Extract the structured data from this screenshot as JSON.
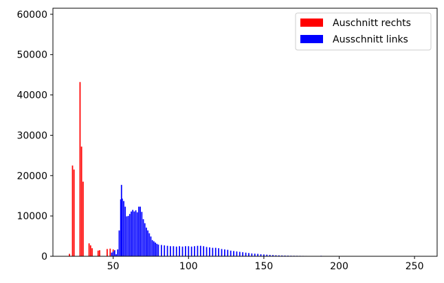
{
  "chart_data": {
    "type": "bar",
    "title": "",
    "xlabel": "",
    "ylabel": "",
    "xlim": [
      10,
      265
    ],
    "ylim": [
      0,
      61500
    ],
    "xticks": [
      50,
      100,
      150,
      200,
      250
    ],
    "yticks": [
      0,
      10000,
      20000,
      30000,
      40000,
      50000,
      60000
    ],
    "grid": false,
    "legend_position": "top-right",
    "series": [
      {
        "name": "Auschnitt rechts",
        "color": "#ff0000",
        "points": [
          [
            21,
            600
          ],
          [
            23,
            22500
          ],
          [
            24,
            21500
          ],
          [
            28,
            43200
          ],
          [
            29,
            27200
          ],
          [
            30,
            18500
          ],
          [
            34,
            3200
          ],
          [
            35,
            2700
          ],
          [
            36,
            2000
          ],
          [
            40,
            1400
          ],
          [
            41,
            1500
          ],
          [
            46,
            1800
          ],
          [
            48,
            1900
          ],
          [
            50,
            1700
          ]
        ]
      },
      {
        "name": "Ausschnitt links",
        "color": "#0000ff",
        "points": [
          [
            49,
            900
          ],
          [
            50,
            1200
          ],
          [
            51,
            1500
          ],
          [
            52,
            500
          ],
          [
            53,
            1700
          ],
          [
            54,
            6400
          ],
          [
            55,
            14100
          ],
          [
            55.5,
            17700
          ],
          [
            56,
            14300
          ],
          [
            57,
            13700
          ],
          [
            58,
            12300
          ],
          [
            59,
            9900
          ],
          [
            60,
            10000
          ],
          [
            61,
            10500
          ],
          [
            62,
            11100
          ],
          [
            63,
            11500
          ],
          [
            64,
            11100
          ],
          [
            65,
            11400
          ],
          [
            66,
            10900
          ],
          [
            67,
            12300
          ],
          [
            68,
            12300
          ],
          [
            69,
            11000
          ],
          [
            70,
            9200
          ],
          [
            71,
            8200
          ],
          [
            72,
            7100
          ],
          [
            73,
            6400
          ],
          [
            74,
            5700
          ],
          [
            75,
            4900
          ],
          [
            76,
            4000
          ],
          [
            77,
            3700
          ],
          [
            78,
            3400
          ],
          [
            79,
            3100
          ],
          [
            80,
            2900
          ],
          [
            82,
            2800
          ],
          [
            84,
            2700
          ],
          [
            86,
            2600
          ],
          [
            88,
            2500
          ],
          [
            90,
            2500
          ],
          [
            92,
            2400
          ],
          [
            94,
            2500
          ],
          [
            96,
            2400
          ],
          [
            98,
            2500
          ],
          [
            100,
            2500
          ],
          [
            102,
            2400
          ],
          [
            104,
            2500
          ],
          [
            106,
            2600
          ],
          [
            108,
            2600
          ],
          [
            110,
            2500
          ],
          [
            112,
            2300
          ],
          [
            114,
            2200
          ],
          [
            116,
            2100
          ],
          [
            118,
            2100
          ],
          [
            120,
            2000
          ],
          [
            122,
            1800
          ],
          [
            124,
            1700
          ],
          [
            126,
            1600
          ],
          [
            128,
            1400
          ],
          [
            130,
            1300
          ],
          [
            132,
            1200
          ],
          [
            134,
            1100
          ],
          [
            136,
            1000
          ],
          [
            138,
            900
          ],
          [
            140,
            800
          ],
          [
            142,
            700
          ],
          [
            144,
            650
          ],
          [
            146,
            600
          ],
          [
            148,
            500
          ],
          [
            150,
            450
          ],
          [
            152,
            400
          ],
          [
            154,
            350
          ],
          [
            156,
            300
          ],
          [
            158,
            250
          ],
          [
            160,
            220
          ],
          [
            162,
            200
          ],
          [
            164,
            180
          ],
          [
            166,
            160
          ],
          [
            168,
            140
          ],
          [
            170,
            130
          ],
          [
            172,
            120
          ],
          [
            174,
            110
          ],
          [
            176,
            100
          ],
          [
            178,
            90
          ],
          [
            180,
            80
          ],
          [
            182,
            70
          ],
          [
            184,
            70
          ],
          [
            186,
            80
          ],
          [
            188,
            120
          ],
          [
            190,
            60
          ],
          [
            194,
            50
          ],
          [
            198,
            40
          ],
          [
            204,
            30
          ],
          [
            210,
            25
          ],
          [
            220,
            20
          ],
          [
            230,
            15
          ],
          [
            240,
            10
          ],
          [
            250,
            10
          ],
          [
            255,
            8
          ]
        ]
      }
    ]
  }
}
